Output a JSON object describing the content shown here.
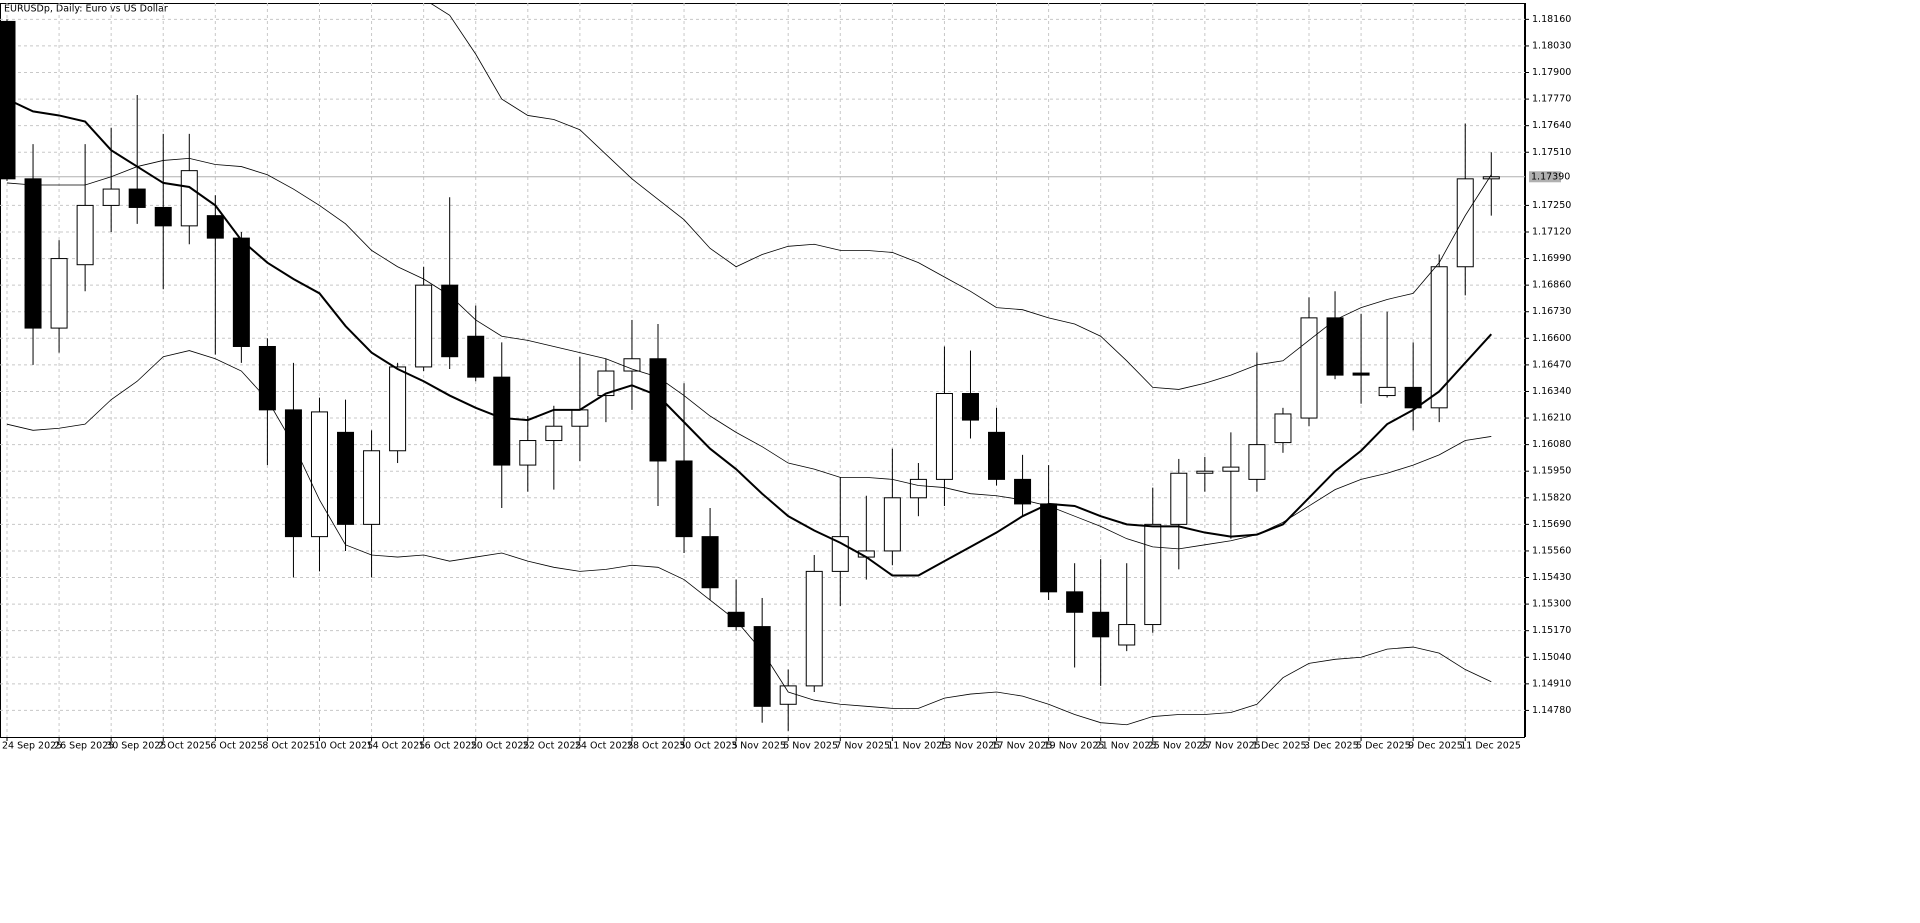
{
  "chart_data": {
    "type": "candlestick",
    "title": "EURUSDp, Daily:  Euro vs US Dollar",
    "x": [
      "24 Sep 2025",
      null,
      "26 Sep 2025",
      null,
      "30 Sep 2025",
      null,
      "2 Oct 2025",
      null,
      "6 Oct 2025",
      null,
      "8 Oct 2025",
      null,
      "10 Oct 2025",
      null,
      "14 Oct 2025",
      null,
      "16 Oct 2025",
      null,
      "20 Oct 2025",
      null,
      "22 Oct 2025",
      null,
      "24 Oct 2025",
      null,
      "28 Oct 2025",
      null,
      "30 Oct 2025",
      null,
      "3 Nov 2025",
      null,
      "5 Nov 2025",
      null,
      "7 Nov 2025",
      null,
      "11 Nov 2025",
      null,
      "13 Nov 2025",
      null,
      "17 Nov 2025",
      null,
      "19 Nov 2025",
      null,
      "21 Nov 2025",
      null,
      "25 Nov 2025",
      null,
      "27 Nov 2025",
      null,
      "1 Dec 2025",
      null,
      "3 Dec 2025",
      null,
      "5 Dec 2025",
      null,
      "9 Dec 2025",
      null,
      "11 Dec 2025",
      null
    ],
    "open": [
      1.1815,
      1.1738,
      1.1665,
      1.1696,
      1.1725,
      1.1733,
      1.1724,
      1.1715,
      1.172,
      1.1709,
      1.1656,
      1.1625,
      1.1563,
      1.1614,
      1.1569,
      1.1605,
      1.1646,
      1.1686,
      1.1661,
      1.1641,
      1.1598,
      1.161,
      1.1617,
      1.1632,
      1.1644,
      1.165,
      1.16,
      1.1563,
      1.1526,
      1.1519,
      1.1481,
      1.149,
      1.1546,
      1.1553,
      1.1556,
      1.1582,
      1.1591,
      1.1633,
      1.1614,
      1.1591,
      1.1579,
      1.1536,
      1.1526,
      1.151,
      1.152,
      1.1569,
      1.1594,
      1.1595,
      1.1591,
      1.1609,
      1.1621,
      1.167,
      1.1643,
      1.1632,
      1.1636,
      1.1626,
      1.1695,
      1.1738
    ],
    "high": [
      1.1816,
      1.1755,
      1.1708,
      1.1755,
      1.1763,
      1.1779,
      1.176,
      1.176,
      1.173,
      1.1712,
      1.166,
      1.1648,
      1.1631,
      1.163,
      1.1615,
      1.1648,
      1.1695,
      1.1729,
      1.1676,
      1.1658,
      1.1622,
      1.1627,
      1.1651,
      1.165,
      1.1669,
      1.1667,
      1.1638,
      1.1577,
      1.1542,
      1.1533,
      1.1498,
      1.1554,
      1.1592,
      1.1583,
      1.1606,
      1.1599,
      1.1656,
      1.1654,
      1.1626,
      1.1603,
      1.1598,
      1.155,
      1.1552,
      1.155,
      1.1587,
      1.1601,
      1.1602,
      1.1614,
      1.1653,
      1.1626,
      1.168,
      1.1683,
      1.1672,
      1.1673,
      1.1658,
      1.1701,
      1.1765,
      1.1751
    ],
    "low": [
      1.1737,
      1.1647,
      1.1653,
      1.1683,
      1.1712,
      1.1716,
      1.1684,
      1.1706,
      1.1652,
      1.1648,
      1.1598,
      1.1543,
      1.1546,
      1.1556,
      1.1543,
      1.1599,
      1.1644,
      1.1645,
      1.1639,
      1.1577,
      1.1585,
      1.1586,
      1.16,
      1.1619,
      1.1625,
      1.1578,
      1.1555,
      1.1532,
      1.1517,
      1.1472,
      1.1468,
      1.1487,
      1.1529,
      1.1542,
      1.1549,
      1.1573,
      1.1578,
      1.1611,
      1.1588,
      1.1573,
      1.1532,
      1.1499,
      1.149,
      1.1507,
      1.1516,
      1.1547,
      1.1585,
      1.1562,
      1.1585,
      1.1604,
      1.1617,
      1.164,
      1.1628,
      1.1631,
      1.1615,
      1.1619,
      1.1681,
      1.172
    ],
    "close": [
      1.1738,
      1.1665,
      1.1699,
      1.1725,
      1.1733,
      1.1724,
      1.1715,
      1.1742,
      1.1709,
      1.1656,
      1.1625,
      1.1563,
      1.1624,
      1.1569,
      1.1605,
      1.1646,
      1.1686,
      1.1651,
      1.1641,
      1.1598,
      1.161,
      1.1617,
      1.1625,
      1.1644,
      1.165,
      1.16,
      1.1563,
      1.1538,
      1.1519,
      1.148,
      1.149,
      1.1546,
      1.1563,
      1.1556,
      1.1582,
      1.1591,
      1.1633,
      1.162,
      1.1591,
      1.1579,
      1.1536,
      1.1526,
      1.1514,
      1.152,
      1.1569,
      1.1594,
      1.1595,
      1.1597,
      1.1608,
      1.1623,
      1.167,
      1.1642,
      1.1642,
      1.1636,
      1.1626,
      1.1695,
      1.1738,
      1.1739
    ],
    "up_color": "#ffffff",
    "down_color": "#000000",
    "candle_border": "#000000",
    "lines": [
      {
        "color": "#000000",
        "values": [
          1.1777,
          1.1771,
          1.1769,
          1.1766,
          1.1752,
          1.1744,
          1.1736,
          1.1734,
          1.1725,
          1.1708,
          1.1697,
          1.1689,
          1.1682,
          1.1666,
          1.1653,
          1.1645,
          1.1639,
          1.1632,
          1.1626,
          1.1621,
          1.162,
          1.1625,
          1.1625,
          1.1633,
          1.1637,
          1.1632,
          1.1619,
          1.1606,
          1.1596,
          1.1584,
          1.1573,
          1.1566,
          1.156,
          1.1553,
          1.1544,
          1.1544,
          1.1551,
          1.1558,
          1.1565,
          1.1573,
          1.1579,
          1.1578,
          1.1573,
          1.1569,
          1.1568,
          1.1568,
          1.1565,
          1.1563,
          1.1564,
          1.1569,
          1.1582,
          1.1595,
          1.1605,
          1.1618,
          1.1625,
          1.1634,
          1.1648,
          1.1662
        ]
      },
      {
        "color": "#000000",
        "values": [
          1.1736,
          1.1735,
          1.1735,
          1.1735,
          1.1739,
          1.1744,
          1.1747,
          1.1748,
          1.1745,
          1.1744,
          1.174,
          1.1733,
          1.1725,
          1.1716,
          1.1703,
          1.1695,
          1.1689,
          1.1681,
          1.1669,
          1.1661,
          1.1659,
          1.1656,
          1.1653,
          1.165,
          1.1645,
          1.1641,
          1.1632,
          1.1622,
          1.1614,
          1.1607,
          1.1599,
          1.1596,
          1.1592,
          1.1592,
          1.1591,
          1.1588,
          1.1587,
          1.1584,
          1.1583,
          1.1581,
          1.1578,
          1.1573,
          1.1568,
          1.1562,
          1.1558,
          1.1557,
          1.1559,
          1.1561,
          1.1564,
          1.157,
          1.1578,
          1.1586,
          1.1591,
          1.1594,
          1.1598,
          1.1603,
          1.161,
          1.1612
        ]
      },
      {
        "color": "#000000",
        "values": [
          null,
          null,
          null,
          null,
          null,
          null,
          null,
          null,
          null,
          null,
          null,
          null,
          null,
          null,
          null,
          null,
          1.1826,
          1.1818,
          1.1799,
          1.1777,
          1.1769,
          1.1767,
          1.1762,
          1.175,
          1.1738,
          1.1728,
          1.1718,
          1.1704,
          1.1695,
          1.1701,
          1.1705,
          1.1706,
          1.1703,
          1.1703,
          1.1702,
          1.1697,
          1.169,
          1.1683,
          1.1675,
          1.1674,
          1.167,
          1.1667,
          1.1661,
          1.1649,
          1.1636,
          1.1635,
          1.1638,
          1.1642,
          1.1647,
          1.1649,
          1.1659,
          1.1669,
          1.1675,
          1.1679,
          1.1682,
          1.1697,
          1.172,
          1.174
        ]
      },
      {
        "color": "#000000",
        "values": [
          1.1618,
          1.1615,
          1.1616,
          1.1618,
          1.163,
          1.1639,
          1.1651,
          1.1654,
          1.165,
          1.1644,
          1.163,
          1.1608,
          1.1581,
          1.1559,
          1.1554,
          1.1553,
          1.1554,
          1.1551,
          1.1553,
          1.1555,
          1.1551,
          1.1548,
          1.1546,
          1.1547,
          1.1549,
          1.1548,
          1.1542,
          1.1532,
          1.1522,
          1.1507,
          1.1487,
          1.1483,
          1.1481,
          1.148,
          1.1479,
          1.1479,
          1.1484,
          1.1486,
          1.1487,
          1.1485,
          1.1481,
          1.1476,
          1.1472,
          1.1471,
          1.1475,
          1.1476,
          1.1476,
          1.1477,
          1.1481,
          1.1494,
          1.1501,
          1.1503,
          1.1504,
          1.1508,
          1.1509,
          1.1506,
          1.1498,
          1.1492
        ]
      }
    ],
    "ylim": [
      1.1465,
      1.1824
    ],
    "yticks": [
      {
        "value": 1.1816,
        "label": "1.18160"
      },
      {
        "value": 1.1803,
        "label": "1.18030"
      },
      {
        "value": 1.179,
        "label": "1.17900"
      },
      {
        "value": 1.1777,
        "label": "1.17770"
      },
      {
        "value": 1.1764,
        "label": "1.17640"
      },
      {
        "value": 1.1751,
        "label": "1.17510"
      },
      {
        "value": 1.1725,
        "label": "1.17250"
      },
      {
        "value": 1.1712,
        "label": "1.17120"
      },
      {
        "value": 1.1699,
        "label": "1.16990"
      },
      {
        "value": 1.1686,
        "label": "1.16860"
      },
      {
        "value": 1.1673,
        "label": "1.16730"
      },
      {
        "value": 1.166,
        "label": "1.16600"
      },
      {
        "value": 1.1647,
        "label": "1.16470"
      },
      {
        "value": 1.1634,
        "label": "1.16340"
      },
      {
        "value": 1.1621,
        "label": "1.16210"
      },
      {
        "value": 1.1608,
        "label": "1.16080"
      },
      {
        "value": 1.1595,
        "label": "1.15950"
      },
      {
        "value": 1.1582,
        "label": "1.15820"
      },
      {
        "value": 1.1569,
        "label": "1.15690"
      },
      {
        "value": 1.1556,
        "label": "1.15560"
      },
      {
        "value": 1.1543,
        "label": "1.15430"
      },
      {
        "value": 1.153,
        "label": "1.15300"
      },
      {
        "value": 1.1517,
        "label": "1.15170"
      },
      {
        "value": 1.1504,
        "label": "1.15040"
      },
      {
        "value": 1.1491,
        "label": "1.14910"
      },
      {
        "value": 1.1478,
        "label": "1.14780"
      }
    ],
    "current_price": {
      "value": 1.1739,
      "label": "1.17390"
    },
    "grid": true
  }
}
